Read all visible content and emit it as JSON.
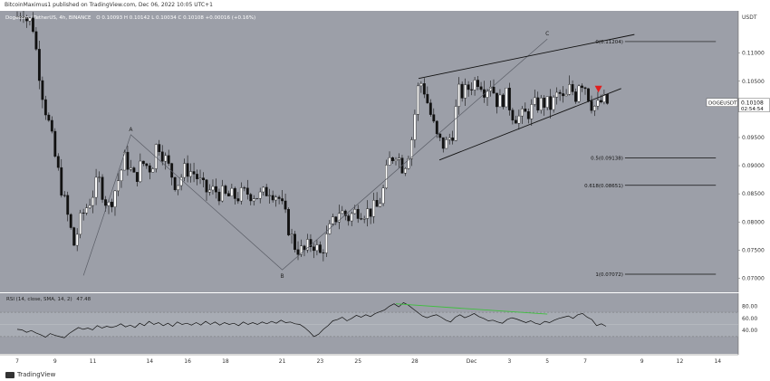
{
  "header": {
    "text": "BitcoinMaximus1 published on TradingView.com, Dec 06, 2022 10:05 UTC+1"
  },
  "footer": {
    "brand": "TradingView"
  },
  "chart_data": {
    "type": "candlestick",
    "title": "Dogecoin / TetherUS, 4h, BINANCE",
    "ohlc_label": "O 0.10093 H 0.10142 L 0.10034 C 0.10108 +0.00016 (+0.16%)",
    "ylabel": "USDT",
    "ylim": [
      0.0675,
      0.1175
    ],
    "y_ticks": [
      "0.11000",
      "0.10500",
      "0.10000",
      "0.09500",
      "0.09000",
      "0.08500",
      "0.08000",
      "0.07500",
      "0.07000"
    ],
    "x_ticks": [
      "7",
      "9",
      "11",
      "14",
      "16",
      "18",
      "21",
      "23",
      "25",
      "28",
      "Dec",
      "3",
      "5",
      "7",
      "9",
      "12",
      "14"
    ],
    "price_tag": {
      "label": "DOGEUSDT",
      "price": "0.10108",
      "countdown": "02:54:54",
      "value": 0.10108
    },
    "fib_levels": [
      {
        "label": "0(0.11204)",
        "value": 0.11204
      },
      {
        "label": "0.5(0.09138)",
        "value": 0.09138
      },
      {
        "label": "0.618(0.08651)",
        "value": 0.08651
      },
      {
        "label": "1(0.07072)",
        "value": 0.07072
      }
    ],
    "wave_labels": [
      {
        "label": "A",
        "date": "Nov 13",
        "value": 0.0955
      },
      {
        "label": "B",
        "date": "Nov 21",
        "value": 0.0715
      },
      {
        "label": "C",
        "date": "Dec 5",
        "value": 0.1125
      }
    ],
    "rsi": {
      "label": "RSI (14, close, SMA, 14, 2)",
      "value_label": "47.48",
      "ylim": [
        0,
        100
      ],
      "y_ticks": [
        "80.00",
        "60.00",
        "40.00"
      ],
      "upper_band": 70,
      "lower_band": 30,
      "values": [
        42,
        41,
        37,
        40,
        36,
        33,
        29,
        35,
        32,
        30,
        28,
        35,
        40,
        45,
        42,
        44,
        41,
        48,
        44,
        47,
        45,
        47,
        51,
        46,
        49,
        45,
        52,
        48,
        55,
        50,
        53,
        48,
        52,
        47,
        54,
        50,
        52,
        49,
        53,
        49,
        55,
        50,
        54,
        49,
        53,
        50,
        52,
        48,
        54,
        50,
        53,
        50,
        54,
        51,
        55,
        52,
        57,
        53,
        54,
        51,
        50,
        45,
        38,
        30,
        34,
        42,
        48,
        56,
        58,
        62,
        56,
        60,
        65,
        62,
        66,
        63,
        68,
        71,
        74,
        80,
        84,
        79,
        86,
        82,
        76,
        70,
        64,
        61,
        64,
        66,
        62,
        57,
        54,
        62,
        66,
        61,
        64,
        68,
        63,
        60,
        56,
        57,
        54,
        52,
        58,
        61,
        59,
        56,
        53,
        56,
        52,
        50,
        55,
        53,
        57,
        60,
        62,
        64,
        60,
        66,
        68,
        62,
        58,
        48,
        51,
        47
      ],
      "divergence": [
        {
          "date": "Nov 27",
          "value": 84
        },
        {
          "date": "Dec 5",
          "value": 67
        }
      ]
    }
  }
}
